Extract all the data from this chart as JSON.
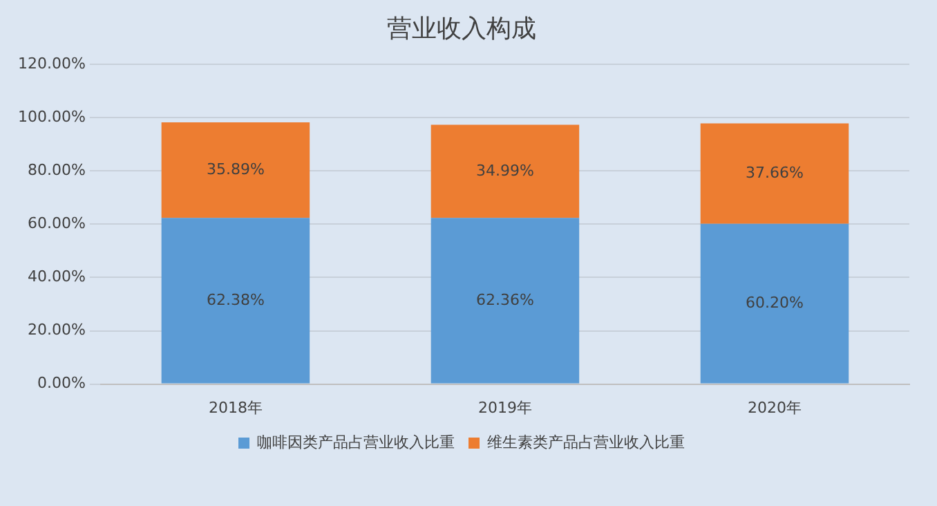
{
  "chart_data": {
    "type": "bar",
    "title": "营业收入构成",
    "categories": [
      "2018年",
      "2019年",
      "2020年"
    ],
    "stacked": true,
    "series": [
      {
        "name": "咖啡因类产品占营业收入比重",
        "color": "#5b9bd5",
        "values": [
          62.38,
          62.36,
          60.2
        ],
        "value_labels": [
          "62.38%",
          "62.36%",
          "60.20%"
        ]
      },
      {
        "name": "维生素类产品占营业收入比重",
        "color": "#ed7d31",
        "values": [
          35.89,
          34.99,
          37.66
        ],
        "value_labels": [
          "35.89%",
          "34.99%",
          "37.66%"
        ]
      }
    ],
    "ylim": [
      0,
      120
    ],
    "yticks": [
      {
        "value": 0,
        "label": "0.00%"
      },
      {
        "value": 20,
        "label": "20.00%"
      },
      {
        "value": 40,
        "label": "40.00%"
      },
      {
        "value": 60,
        "label": "60.00%"
      },
      {
        "value": 80,
        "label": "80.00%"
      },
      {
        "value": 100,
        "label": "100.00%"
      },
      {
        "value": 120,
        "label": "120.00%"
      }
    ],
    "grid": "y",
    "legend": "bottom"
  }
}
